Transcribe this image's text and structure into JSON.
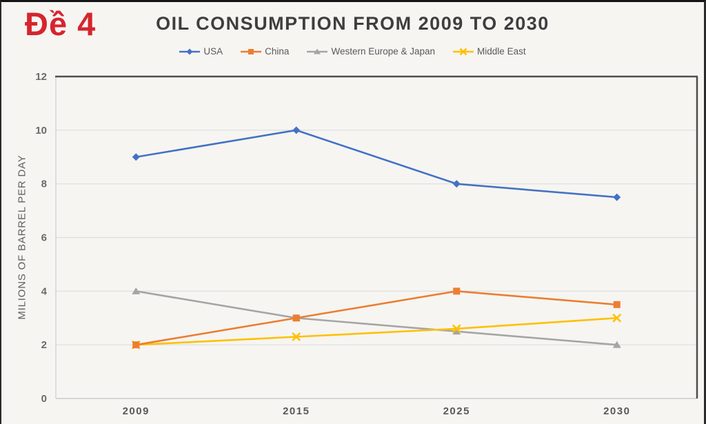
{
  "page": {
    "label": "Đề 4",
    "label_color": "#d6252e"
  },
  "chart_data": {
    "type": "line",
    "title": "OIL CONSUMPTION FROM 2009 TO 2030",
    "ylabel": "MILIONS OF BARREL PER DAY",
    "xlabel": "",
    "categories": [
      "2009",
      "2015",
      "2025",
      "2030"
    ],
    "series": [
      {
        "name": "USA",
        "values": [
          9,
          10,
          8,
          7.5
        ],
        "color": "#4472c4",
        "marker": "diamond"
      },
      {
        "name": "China",
        "values": [
          2,
          3,
          4,
          3.5
        ],
        "color": "#ed7d31",
        "marker": "square"
      },
      {
        "name": "Western Europe & Japan",
        "values": [
          4,
          3,
          2.5,
          2
        ],
        "color": "#a5a5a5",
        "marker": "triangle"
      },
      {
        "name": "Middle East",
        "values": [
          2,
          2.3,
          2.6,
          3
        ],
        "color": "#ffc000",
        "marker": "x"
      }
    ],
    "ylim": [
      0,
      12
    ],
    "yticks": [
      0,
      2,
      4,
      6,
      8,
      10,
      12
    ],
    "grid": true,
    "legend_position": "top"
  }
}
